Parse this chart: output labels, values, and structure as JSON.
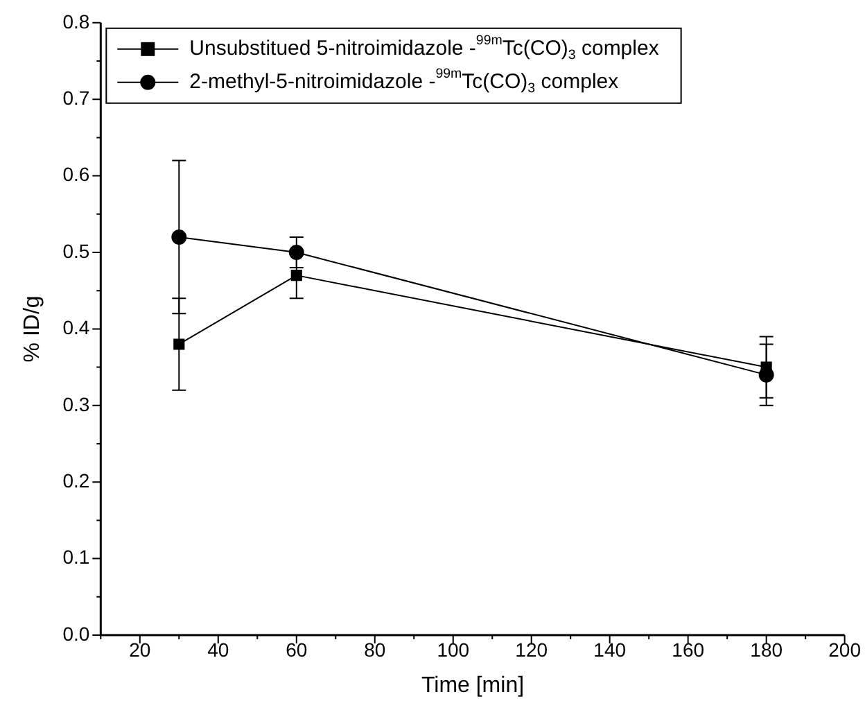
{
  "chart_data": {
    "type": "line",
    "xlabel": "Time [min]",
    "ylabel": "% ID/g",
    "x": [
      30,
      60,
      180
    ],
    "series": [
      {
        "name": "Unsubstitued 5-nitroimidazole -$^{99m}$Tc(CO)$_{3}$ complex",
        "color": "#000000",
        "marker": "square",
        "values": [
          0.38,
          0.47,
          0.35
        ],
        "errors": [
          0.06,
          0.03,
          0.04
        ]
      },
      {
        "name": "2-methyl-5-nitroimidazole -$^{99m}$Tc(CO)$_{3}$ complex",
        "color": "#000000",
        "marker": "circle",
        "values": [
          0.52,
          0.5,
          0.34
        ],
        "errors": [
          0.1,
          0.02,
          0.04
        ]
      }
    ],
    "xlim": [
      10,
      200
    ],
    "xticks": [
      20,
      40,
      60,
      80,
      100,
      120,
      140,
      160,
      180,
      200
    ],
    "ylim": [
      0,
      0.8
    ],
    "yticks": [
      {
        "value": 0,
        "label": "0.0"
      },
      0.1,
      0.2,
      0.3,
      0.4,
      0.5,
      0.6,
      0.7,
      0.8
    ],
    "grid": false,
    "legend": "top left",
    "line_style": "solid"
  }
}
